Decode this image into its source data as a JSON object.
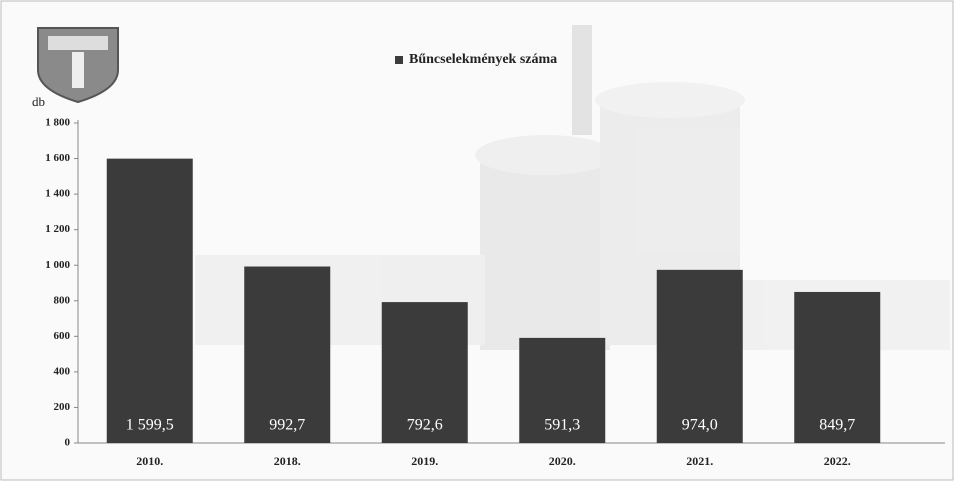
{
  "chart_data": {
    "type": "bar",
    "y_label": "db",
    "categories": [
      "2010.",
      "2018.",
      "2019.",
      "2020.",
      "2021.",
      "2022."
    ],
    "series": [
      {
        "name": "Bűncselekmények száma",
        "color": "#3b3b3b",
        "values": [
          1599.5,
          992.7,
          792.6,
          591.3,
          974.0,
          849.7
        ],
        "value_labels": [
          "1 599,5",
          "992,7",
          "792,6",
          "591,3",
          "974,0",
          "849,7"
        ]
      }
    ],
    "ylim": [
      0,
      1800
    ],
    "yticks": [
      0,
      200,
      400,
      600,
      800,
      {
        "value": 1000,
        "label": "1 000"
      },
      {
        "value": 1200,
        "label": "1 200"
      },
      {
        "value": 1400,
        "label": "1 400"
      },
      {
        "value": 1600,
        "label": "1 600"
      },
      {
        "value": 1800,
        "label": "1 800"
      }
    ]
  }
}
